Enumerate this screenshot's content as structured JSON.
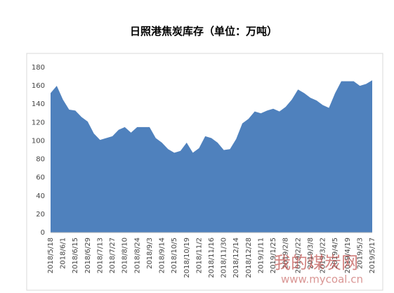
{
  "chart_data": {
    "type": "area",
    "title": "日照港焦炭库存（单位：万吨）",
    "categories": [
      "2018/5/18",
      null,
      "2018/6/1",
      null,
      "2018/6/15",
      null,
      "2018/6/29",
      null,
      "2018/7/13",
      null,
      "2018/7/27",
      null,
      "2018/8/10",
      null,
      "2018/8/24",
      null,
      "2018/9/3",
      null,
      "2018/9/14",
      null,
      "2018/10/5",
      null,
      "2018/10/19",
      null,
      "2018/11/2",
      null,
      "2018/11/16",
      null,
      "2018/11/30",
      null,
      "2018/12/14",
      null,
      "2018/12/28",
      null,
      "2019/1/11",
      null,
      "2019/1/25",
      null,
      "2019/2/8",
      null,
      "2019/2/22",
      null,
      "2019/3/8",
      null,
      "2019/3/22",
      null,
      "2019/4/5",
      null,
      "2019/4/19",
      null,
      "2019/5/3",
      null,
      "2019/5/17"
    ],
    "values": [
      152,
      160,
      145,
      134,
      133,
      126,
      121,
      108,
      101,
      103,
      105,
      112,
      115,
      109,
      115,
      115,
      115,
      103,
      98,
      91,
      87,
      89,
      98,
      87,
      92,
      105,
      103,
      98,
      90,
      91,
      102,
      119,
      124,
      132,
      130,
      133,
      135,
      132,
      137,
      145,
      156,
      152,
      147,
      144,
      139,
      136,
      152,
      165,
      165,
      165,
      160,
      162,
      166
    ],
    "color": "#4f81bd",
    "ylim": [
      0,
      180
    ],
    "yticks": [
      0,
      20,
      40,
      60,
      80,
      100,
      120,
      140,
      160,
      180
    ],
    "grid": false,
    "watermark": {
      "name": "我的煤炭网",
      "url": "www.mycoal.cn"
    }
  }
}
